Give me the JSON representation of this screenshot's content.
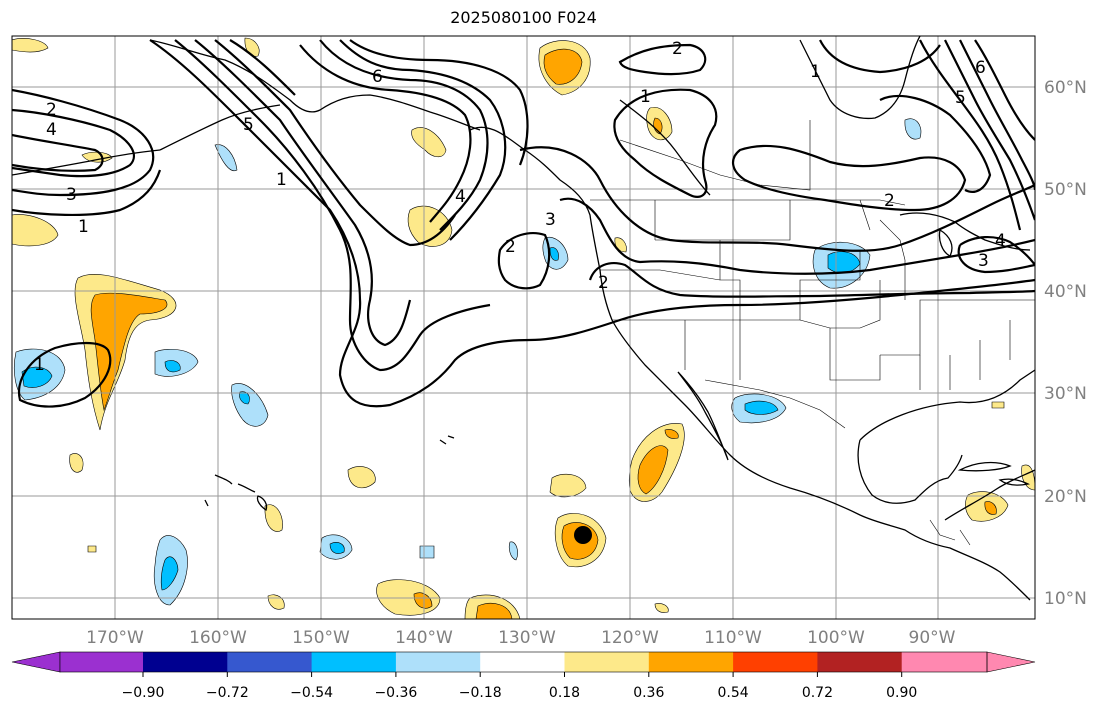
{
  "title": "2025080100 F024",
  "lon_labels": [
    "170°W",
    "160°W",
    "150°W",
    "140°W",
    "130°W",
    "120°W",
    "110°W",
    "100°W",
    "90°W"
  ],
  "lat_labels": [
    "60°N",
    "50°N",
    "40°N",
    "30°N",
    "20°N",
    "10°N"
  ],
  "colorbar": {
    "colors": [
      "#9b30d0",
      "#000090",
      "#3658cf",
      "#00bfff",
      "#aee0fa",
      "#ffffff",
      "#fde98a",
      "#ffa500",
      "#ff4000",
      "#b22222",
      "#ff88b0"
    ],
    "tick_labels": [
      "−0.90",
      "−0.72",
      "−0.54",
      "−0.36",
      "−0.18",
      "0.18",
      "0.36",
      "0.54",
      "0.72",
      "0.90"
    ]
  },
  "contour_labels": [
    "2",
    "4",
    "3",
    "1",
    "5",
    "6",
    "1",
    "2",
    "3",
    "4",
    "2",
    "1",
    "2",
    "3",
    "4",
    "5",
    "6",
    "1",
    "2",
    "1"
  ],
  "colors": {
    "contour": "#000000",
    "grid": "#9a9a9a",
    "axis_label": "#808080",
    "marker": "#000000"
  }
}
